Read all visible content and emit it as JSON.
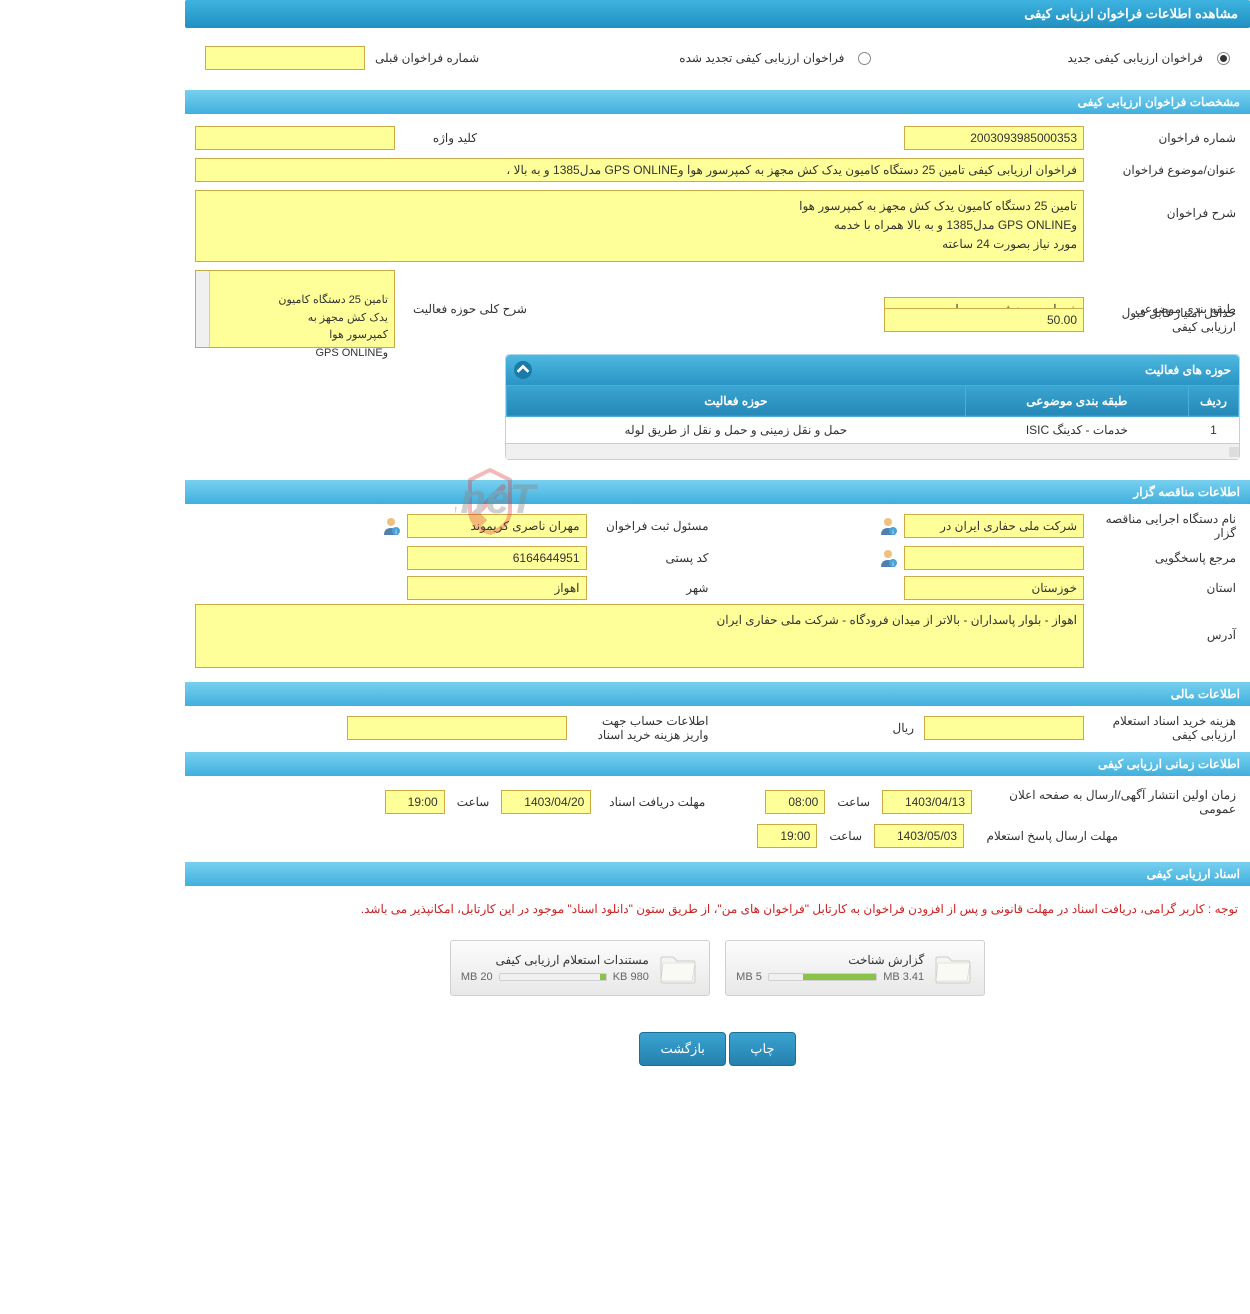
{
  "header_title": "مشاهده اطلاعات فراخوان ارزیابی کیفی",
  "top_radio": {
    "new_label": "فراخوان ارزیابی کیفی جدید",
    "renewed_label": "فراخوان ارزیابی کیفی تجدید شده",
    "prev_label": "شماره فراخوان قبلی"
  },
  "section1_title": "مشخصات فراخوان ارزیابی کیفی",
  "spec": {
    "call_number_label": "شماره فراخوان",
    "call_number": "2003093985000353",
    "keyword_label": "کلید واژه",
    "keyword_value": "",
    "title_label": "عنوان/موضوع فراخوان",
    "title_value": "فراخوان ارزیابی کیفی تامین 25 دستگاه کامیون یدک کش مجهز به کمپرسور هوا    وGPS ONLINE  مدل1385 و به بالا ،",
    "desc_label": "شرح فراخوان",
    "desc_value": "تامین 25 دستگاه کامیون یدک کش مجهز به کمپرسور هوا\nوGPS ONLINE  مدل1385 و به بالا همراه با خدمه\nمورد نیاز  بصورت 24 ساعته",
    "category_label": "طبقه بندی موضوعی",
    "category_value": "خدمات بدون فهرست بها",
    "min_score_label": "حداقل امتیاز قابل قبول ارزیابی کیفی",
    "min_score_value": "50.00",
    "activity_scope_label": "شرح کلی حوزه فعالیت",
    "activity_scope_value": "تامین 25 دستگاه کامیون\nیدک کش مجهز به\nکمپرسور هوا\nوGPS ONLINE"
  },
  "activities": {
    "panel_title": "حوزه های فعالیت",
    "col_row": "ردیف",
    "col_category": "طبقه بندی موضوعی",
    "col_activity": "حوزه فعالیت",
    "rows": [
      {
        "idx": "1",
        "category": "خدمات - کدینگ ISIC",
        "activity": "حمل و نقل زمینی و حمل و نقل از طریق لوله"
      }
    ]
  },
  "section2_title": "اطلاعات مناقصه گزار",
  "tenderer": {
    "org_label": "نام دستگاه اجرایی مناقصه گزار",
    "org_value": "شرکت ملی حفاری ایران در",
    "registrar_label": "مسئول ثبت فراخوان",
    "registrar_value": "مهران ناصری کریموند",
    "responder_label": "مرجع پاسخگویی",
    "responder_value": "",
    "postal_label": "کد پستی",
    "postal_value": "6164644951",
    "province_label": "استان",
    "province_value": "خوزستان",
    "city_label": "شهر",
    "city_value": "اهواز",
    "address_label": "آدرس",
    "address_value": "اهواز - بلوار پاسداران - بالاتر از میدان فرودگاه - شرکت ملی حفاری ایران"
  },
  "section3_title": "اطلاعات مالی",
  "financial": {
    "cost_label": "هزینه خرید اسناد استعلام ارزیابی کیفی",
    "cost_value": "",
    "currency": "ريال",
    "account_label": "اطلاعات حساب جهت واریز هزینه خرید اسناد",
    "account_value": ""
  },
  "section4_title": "اطلاعات زمانی ارزیابی کیفی",
  "timing": {
    "publish_label": "زمان اولین انتشار آگهی/ارسال به صفحه اعلان عمومی",
    "publish_date": "1403/04/13",
    "publish_time_label": "ساعت",
    "publish_time": "08:00",
    "receive_label": "مهلت دریافت اسناد",
    "receive_date": "1403/04/20",
    "receive_time_label": "ساعت",
    "receive_time": "19:00",
    "response_label": "مهلت ارسال پاسخ استعلام",
    "response_date": "1403/05/03",
    "response_time_label": "ساعت",
    "response_time": "19:00"
  },
  "section5_title": "اسناد ارزیابی کیفی",
  "note_text": "توجه : کاربر گرامی، دریافت اسناد در مهلت قانونی و پس از افزودن فراخوان به کارتابل \"فراخوان های من\"، از طریق ستون \"دانلود اسناد\" موجود در این کارتابل، امکانپذیر می باشد.",
  "files": {
    "file1_name": "گزارش شناخت",
    "file1_size": "3.41 MB",
    "file1_total": "5 MB",
    "file1_pct": 68,
    "file2_name": "مستندات استعلام ارزیابی کیفی",
    "file2_size": "980 KB",
    "file2_total": "20 MB",
    "file2_pct": 5
  },
  "buttons": {
    "print": "چاپ",
    "back": "بازگشت"
  },
  "colors": {
    "header_grad_top": "#3eb3e0",
    "header_grad_bottom": "#2090c0",
    "input_bg": "#ffff99",
    "input_border": "#ccaa44",
    "progress_fill": "#8bc34a",
    "note_color": "#cc2222"
  }
}
